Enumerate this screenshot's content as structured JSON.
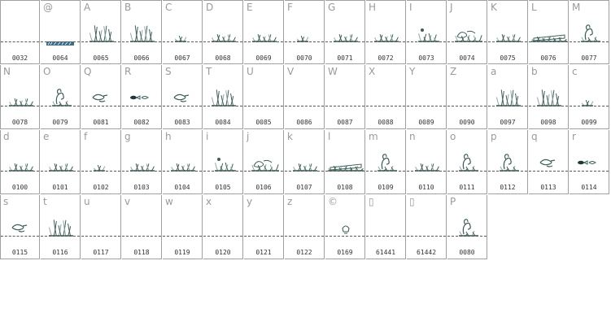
{
  "cells": [
    {
      "char": "",
      "code": "0032",
      "glyph": "empty"
    },
    {
      "char": "@",
      "code": "0064",
      "glyph": "logo-text"
    },
    {
      "char": "A",
      "code": "0065",
      "glyph": "grass-tall"
    },
    {
      "char": "B",
      "code": "0066",
      "glyph": "grass-tall"
    },
    {
      "char": "C",
      "code": "0067",
      "glyph": "grass-small"
    },
    {
      "char": "D",
      "code": "0068",
      "glyph": "grass-medium"
    },
    {
      "char": "E",
      "code": "0069",
      "glyph": "grass-medium"
    },
    {
      "char": "F",
      "code": "0070",
      "glyph": "grass-small"
    },
    {
      "char": "G",
      "code": "0071",
      "glyph": "grass-medium"
    },
    {
      "char": "H",
      "code": "0072",
      "glyph": "grass-medium"
    },
    {
      "char": "I",
      "code": "0073",
      "glyph": "grass-flower"
    },
    {
      "char": "J",
      "code": "0074",
      "glyph": "grass-creature"
    },
    {
      "char": "K",
      "code": "0075",
      "glyph": "grass-medium"
    },
    {
      "char": "L",
      "code": "0076",
      "glyph": "log"
    },
    {
      "char": "M",
      "code": "0077",
      "glyph": "creature"
    },
    {
      "char": "N",
      "code": "0078",
      "glyph": "grass-medium"
    },
    {
      "char": "O",
      "code": "0079",
      "glyph": "creature"
    },
    {
      "char": "Q",
      "code": "0081",
      "glyph": "floating"
    },
    {
      "char": "R",
      "code": "0082",
      "glyph": "fish"
    },
    {
      "char": "S",
      "code": "0083",
      "glyph": "floating"
    },
    {
      "char": "T",
      "code": "0084",
      "glyph": "grass-tall"
    },
    {
      "char": "U",
      "code": "0085",
      "glyph": "empty"
    },
    {
      "char": "V",
      "code": "0086",
      "glyph": "empty"
    },
    {
      "char": "W",
      "code": "0087",
      "glyph": "empty"
    },
    {
      "char": "X",
      "code": "0088",
      "glyph": "empty"
    },
    {
      "char": "Y",
      "code": "0089",
      "glyph": "empty"
    },
    {
      "char": "Z",
      "code": "0090",
      "glyph": "empty"
    },
    {
      "char": "a",
      "code": "0097",
      "glyph": "grass-tall"
    },
    {
      "char": "b",
      "code": "0098",
      "glyph": "grass-tall"
    },
    {
      "char": "c",
      "code": "0099",
      "glyph": "grass-small"
    },
    {
      "char": "d",
      "code": "0100",
      "glyph": "grass-medium"
    },
    {
      "char": "e",
      "code": "0101",
      "glyph": "grass-medium"
    },
    {
      "char": "f",
      "code": "0102",
      "glyph": "grass-small"
    },
    {
      "char": "g",
      "code": "0103",
      "glyph": "grass-medium"
    },
    {
      "char": "h",
      "code": "0104",
      "glyph": "grass-medium"
    },
    {
      "char": "i",
      "code": "0105",
      "glyph": "grass-flower"
    },
    {
      "char": "j",
      "code": "0106",
      "glyph": "grass-creature"
    },
    {
      "char": "k",
      "code": "0107",
      "glyph": "grass-medium"
    },
    {
      "char": "l",
      "code": "0108",
      "glyph": "log"
    },
    {
      "char": "m",
      "code": "0109",
      "glyph": "creature"
    },
    {
      "char": "n",
      "code": "0110",
      "glyph": "grass-medium"
    },
    {
      "char": "o",
      "code": "0111",
      "glyph": "creature"
    },
    {
      "char": "p",
      "code": "0112",
      "glyph": "creature"
    },
    {
      "char": "q",
      "code": "0113",
      "glyph": "floating"
    },
    {
      "char": "r",
      "code": "0114",
      "glyph": "fish"
    },
    {
      "char": "s",
      "code": "0115",
      "glyph": "floating"
    },
    {
      "char": "t",
      "code": "0116",
      "glyph": "grass-tall"
    },
    {
      "char": "u",
      "code": "0117",
      "glyph": "empty"
    },
    {
      "char": "v",
      "code": "0118",
      "glyph": "empty"
    },
    {
      "char": "w",
      "code": "0119",
      "glyph": "empty"
    },
    {
      "char": "x",
      "code": "0120",
      "glyph": "empty"
    },
    {
      "char": "y",
      "code": "0121",
      "glyph": "empty"
    },
    {
      "char": "z",
      "code": "0122",
      "glyph": "empty"
    },
    {
      "char": "©",
      "code": "0169",
      "glyph": "lamp"
    },
    {
      "char": "▯",
      "code": "61441",
      "glyph": "empty"
    },
    {
      "char": "▯",
      "code": "61442",
      "glyph": "empty"
    },
    {
      "char": "P",
      "code": "0080",
      "glyph": "creature"
    }
  ],
  "colors": {
    "ink": "#3d5f5a",
    "ink_light": "#8fa8a3",
    "border": "#a0a0a0"
  }
}
